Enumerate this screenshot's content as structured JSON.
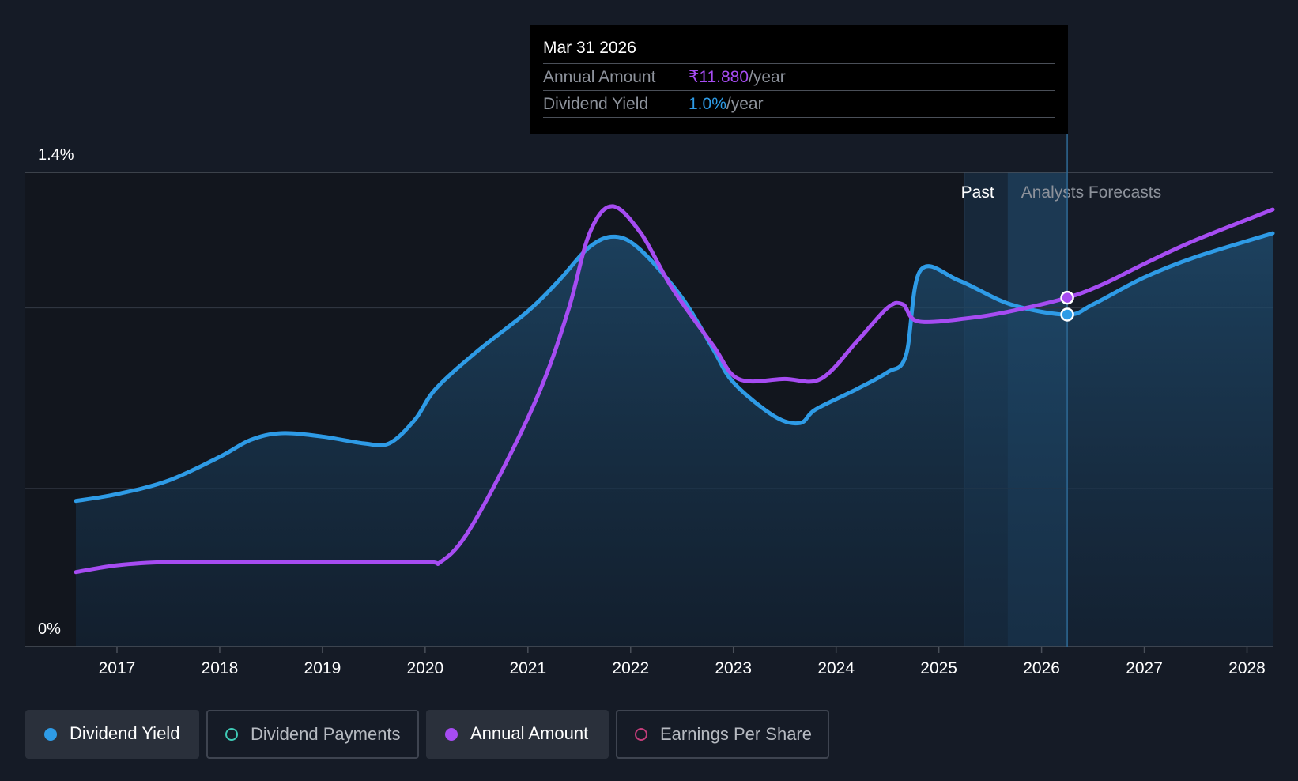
{
  "tooltip": {
    "date": "Mar 31 2026",
    "rows": [
      {
        "label": "Annual Amount",
        "value": "₹11.880",
        "unit": "/year"
      },
      {
        "label": "Dividend Yield",
        "value": "1.0%",
        "unit": "/year"
      }
    ]
  },
  "regions": {
    "past": "Past",
    "forecast": "Analysts Forecasts"
  },
  "legend": [
    {
      "label": "Dividend Yield",
      "color": "#2e9be6",
      "active": true
    },
    {
      "label": "Dividend Payments",
      "color": "#3fc9b5",
      "active": false
    },
    {
      "label": "Annual Amount",
      "color": "#a64cf2",
      "active": true
    },
    {
      "label": "Earnings Per Share",
      "color": "#c23d7a",
      "active": false
    }
  ],
  "chart_data": {
    "type": "line",
    "x_ticks": [
      "2017",
      "2018",
      "2019",
      "2020",
      "2021",
      "2022",
      "2023",
      "2024",
      "2025",
      "2026",
      "2027",
      "2028"
    ],
    "y_ticks": [
      "0%",
      "1.4%"
    ],
    "ylim": [
      0,
      1.4
    ],
    "xlim": [
      2016.6,
      2028.25
    ],
    "past_end": 2025.25,
    "forecast_start": 2025.67,
    "cursor_x": 2026.25,
    "grid": true,
    "series": [
      {
        "name": "Dividend Yield",
        "color": "#2e9be6",
        "points": [
          [
            2016.6,
            0.43
          ],
          [
            2017.0,
            0.45
          ],
          [
            2017.5,
            0.49
          ],
          [
            2018.0,
            0.56
          ],
          [
            2018.3,
            0.61
          ],
          [
            2018.6,
            0.63
          ],
          [
            2019.0,
            0.62
          ],
          [
            2019.4,
            0.6
          ],
          [
            2019.65,
            0.6
          ],
          [
            2019.9,
            0.67
          ],
          [
            2020.1,
            0.76
          ],
          [
            2020.5,
            0.87
          ],
          [
            2021.0,
            0.99
          ],
          [
            2021.3,
            1.08
          ],
          [
            2021.6,
            1.18
          ],
          [
            2021.85,
            1.21
          ],
          [
            2022.1,
            1.17
          ],
          [
            2022.5,
            1.03
          ],
          [
            2022.8,
            0.88
          ],
          [
            2023.0,
            0.78
          ],
          [
            2023.4,
            0.68
          ],
          [
            2023.65,
            0.66
          ],
          [
            2023.8,
            0.7
          ],
          [
            2024.2,
            0.76
          ],
          [
            2024.5,
            0.81
          ],
          [
            2024.68,
            0.86
          ],
          [
            2024.82,
            1.11
          ],
          [
            2025.2,
            1.08
          ],
          [
            2025.7,
            1.01
          ],
          [
            2026.25,
            0.98
          ],
          [
            2026.5,
            1.01
          ],
          [
            2027.0,
            1.09
          ],
          [
            2027.5,
            1.15
          ],
          [
            2028.25,
            1.22
          ]
        ]
      },
      {
        "name": "Annual Amount",
        "color": "#a64cf2",
        "points": [
          [
            2016.6,
            0.22
          ],
          [
            2017.0,
            0.24
          ],
          [
            2017.5,
            0.25
          ],
          [
            2018.0,
            0.25
          ],
          [
            2019.0,
            0.25
          ],
          [
            2020.0,
            0.25
          ],
          [
            2020.15,
            0.25
          ],
          [
            2020.4,
            0.33
          ],
          [
            2020.8,
            0.55
          ],
          [
            2021.15,
            0.78
          ],
          [
            2021.4,
            1.0
          ],
          [
            2021.6,
            1.22
          ],
          [
            2021.82,
            1.3
          ],
          [
            2022.1,
            1.22
          ],
          [
            2022.4,
            1.06
          ],
          [
            2022.8,
            0.89
          ],
          [
            2023.05,
            0.79
          ],
          [
            2023.5,
            0.79
          ],
          [
            2023.85,
            0.79
          ],
          [
            2024.2,
            0.9
          ],
          [
            2024.5,
            1.0
          ],
          [
            2024.65,
            1.01
          ],
          [
            2024.8,
            0.96
          ],
          [
            2025.3,
            0.97
          ],
          [
            2025.7,
            0.99
          ],
          [
            2026.25,
            1.03
          ],
          [
            2026.6,
            1.07
          ],
          [
            2027.0,
            1.13
          ],
          [
            2027.5,
            1.2
          ],
          [
            2028.25,
            1.29
          ]
        ]
      }
    ]
  }
}
